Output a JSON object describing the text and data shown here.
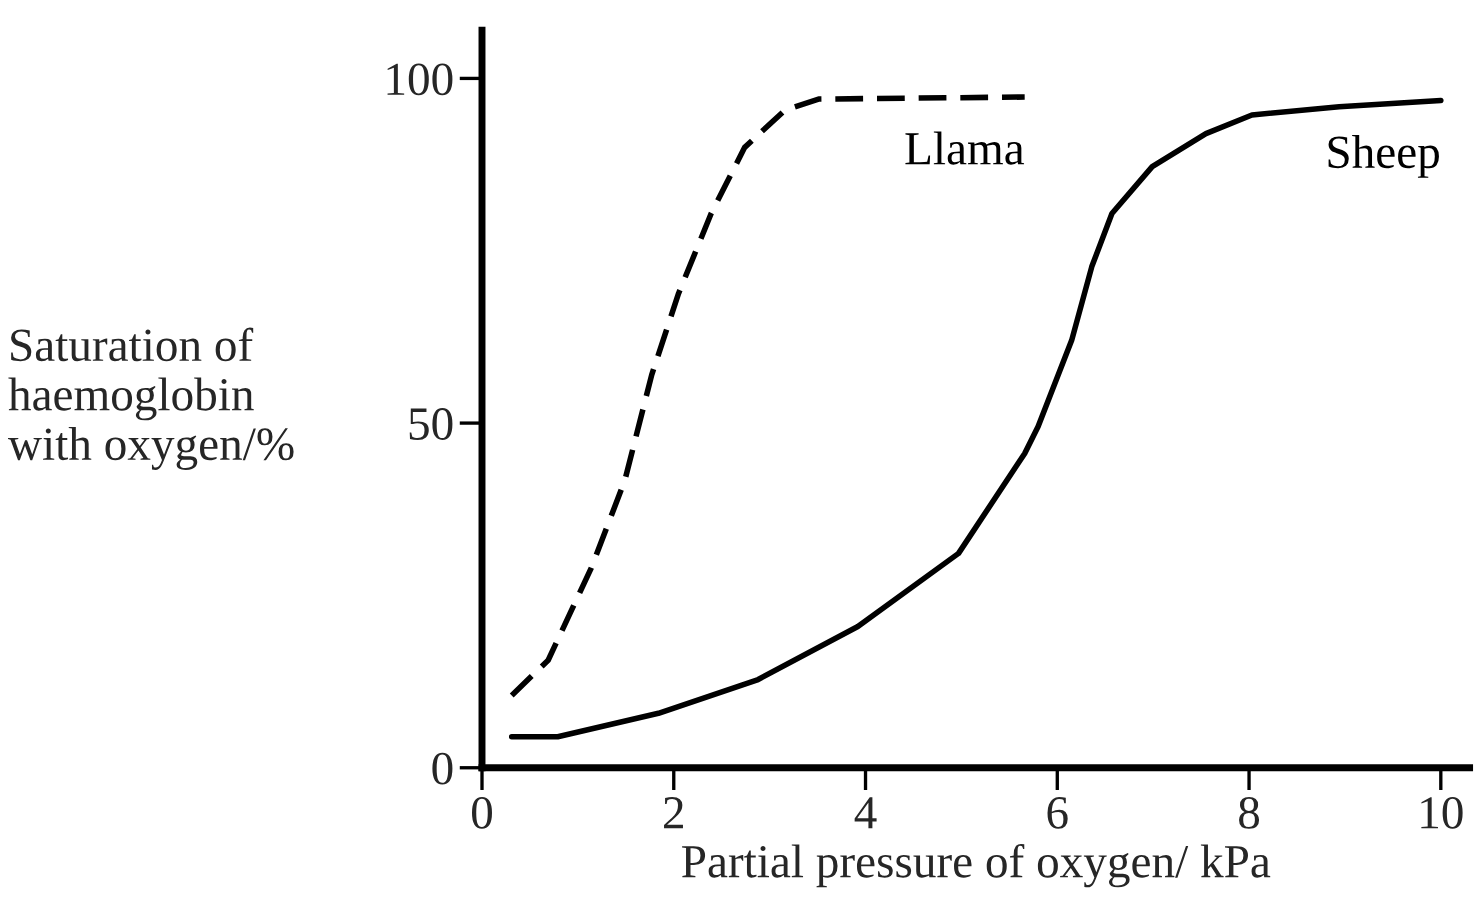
{
  "chart_data": {
    "type": "line",
    "xlabel": "Partial pressure of oxygen/ kPa",
    "ylabel": "Saturation of\nhaemoglobin\nwith oxygen/%",
    "xlim": [
      0,
      10.3
    ],
    "ylim": [
      0,
      107
    ],
    "xticks": [
      0,
      2,
      4,
      6,
      8,
      10
    ],
    "yticks": [
      0,
      50,
      100
    ],
    "grid": false,
    "legend": false,
    "series": [
      {
        "name": "Llama",
        "color": "#000000",
        "line_style": "dashed",
        "x": [
          0.31,
          0.69,
          1.14,
          1.49,
          1.77,
          2.05,
          2.39,
          2.74,
          3.16,
          3.51,
          5.66
        ],
        "values": [
          10.5,
          15.6,
          29,
          41.7,
          57,
          68.8,
          80.4,
          90,
          95.4,
          97,
          97.3
        ]
      },
      {
        "name": "Sheep",
        "color": "#000000",
        "line_style": "solid",
        "x": [
          0.31,
          0.79,
          1.84,
          2.88,
          3.92,
          4.97,
          5.66,
          5.8,
          6.15,
          6.36,
          6.57,
          6.99,
          7.55,
          8.03,
          8.94,
          10.0
        ],
        "values": [
          4.5,
          4.5,
          7.9,
          12.8,
          20.5,
          31.1,
          45.6,
          49.5,
          62,
          72.7,
          80.4,
          87.2,
          92,
          94.7,
          95.9,
          96.8
        ]
      }
    ]
  }
}
